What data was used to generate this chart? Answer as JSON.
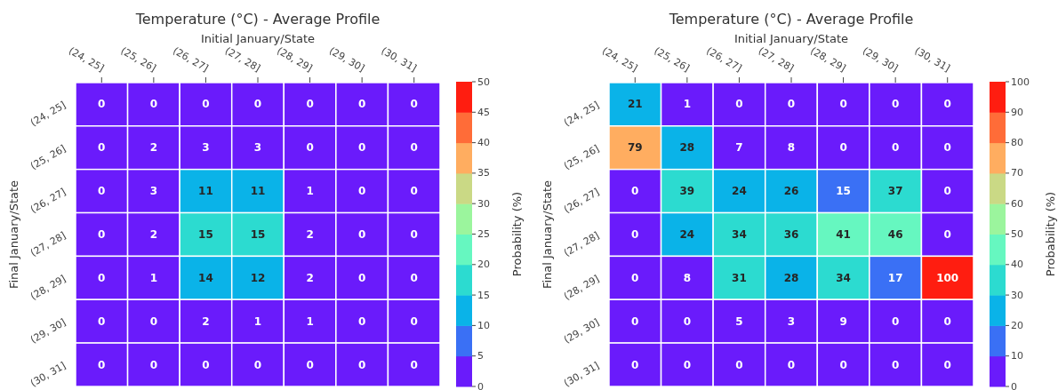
{
  "chart_data": [
    {
      "type": "heatmap",
      "title": "Temperature (°C) - Average Profile",
      "xlabel": "Initial January/State",
      "ylabel": "Final January/State",
      "clabel": "Probability (%)",
      "categories": [
        "(24, 25]",
        "(25, 26]",
        "(26, 27]",
        "(27, 28]",
        "(28, 29]",
        "(29, 30]",
        "(30, 31]"
      ],
      "y_categories": [
        "(24, 25]",
        "(25, 26]",
        "(26, 27]",
        "(27, 28]",
        "(28, 29]",
        "(29, 30]",
        "(30, 31]"
      ],
      "cells": [
        [
          0,
          0,
          0,
          0,
          0,
          0,
          0
        ],
        [
          0,
          2,
          3,
          3,
          0,
          0,
          0
        ],
        [
          0,
          3,
          11,
          11,
          1,
          0,
          0
        ],
        [
          0,
          2,
          15,
          15,
          2,
          0,
          0
        ],
        [
          0,
          1,
          14,
          12,
          2,
          0,
          0
        ],
        [
          0,
          0,
          2,
          1,
          1,
          0,
          0
        ],
        [
          0,
          0,
          0,
          0,
          0,
          0,
          0
        ]
      ],
      "clim": [
        0,
        50
      ],
      "cticks": [
        0,
        5,
        10,
        15,
        20,
        25,
        30,
        35,
        40,
        45,
        50
      ],
      "data_labels": true
    },
    {
      "type": "heatmap",
      "title": "Temperature (°C) - Average Profile",
      "xlabel": "Initial January/State",
      "ylabel": "Final January/State",
      "clabel": "Probability (%)",
      "categories": [
        "(24, 25]",
        "(25, 26]",
        "(26, 27]",
        "(27, 28]",
        "(28, 29]",
        "(29, 30]",
        "(30, 31]"
      ],
      "y_categories": [
        "(24, 25]",
        "(25, 26]",
        "(26, 27]",
        "(27, 28]",
        "(28, 29]",
        "(29, 30]",
        "(30, 31]"
      ],
      "cells": [
        [
          21,
          1,
          0,
          0,
          0,
          0,
          0
        ],
        [
          79,
          28,
          7,
          8,
          0,
          0,
          0
        ],
        [
          0,
          39,
          24,
          26,
          15,
          37,
          0
        ],
        [
          0,
          24,
          34,
          36,
          41,
          46,
          0
        ],
        [
          0,
          8,
          31,
          28,
          34,
          17,
          100
        ],
        [
          0,
          0,
          5,
          3,
          9,
          0,
          0
        ],
        [
          0,
          0,
          0,
          0,
          0,
          0,
          0
        ]
      ],
      "clim": [
        0,
        100
      ],
      "cticks": [
        0,
        10,
        20,
        30,
        40,
        50,
        60,
        70,
        80,
        90,
        100
      ],
      "data_labels": true
    }
  ]
}
